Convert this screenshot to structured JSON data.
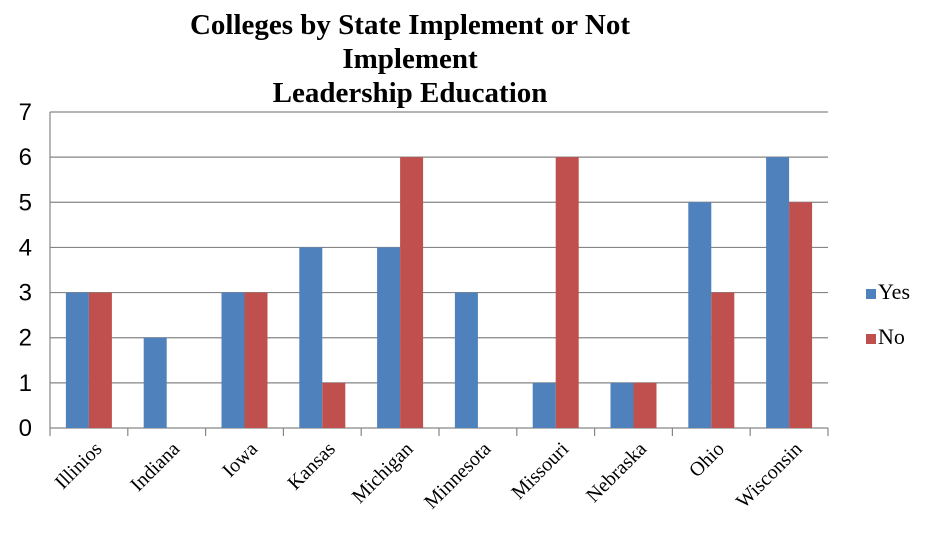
{
  "chart_data": {
    "type": "bar",
    "title_line1": "Colleges by State Implement or Not Implement",
    "title_line2": "Leadership Education",
    "categories": [
      "Illinios",
      "Indiana",
      "Iowa",
      "Kansas",
      "Michigan",
      "Minnesota",
      "Missouri",
      "Nebraska",
      "Ohio",
      "Wisconsin"
    ],
    "series": [
      {
        "name": "Yes",
        "color": "#4f81bd",
        "values": [
          3,
          2,
          3,
          4,
          4,
          3,
          1,
          1,
          5,
          6
        ]
      },
      {
        "name": "No",
        "color": "#c0504d",
        "values": [
          3,
          0,
          3,
          1,
          6,
          0,
          6,
          1,
          3,
          5
        ]
      }
    ],
    "ylim": [
      0,
      7
    ],
    "yticks": [
      0,
      1,
      2,
      3,
      4,
      5,
      6,
      7
    ],
    "grid": true,
    "legend": "right"
  }
}
